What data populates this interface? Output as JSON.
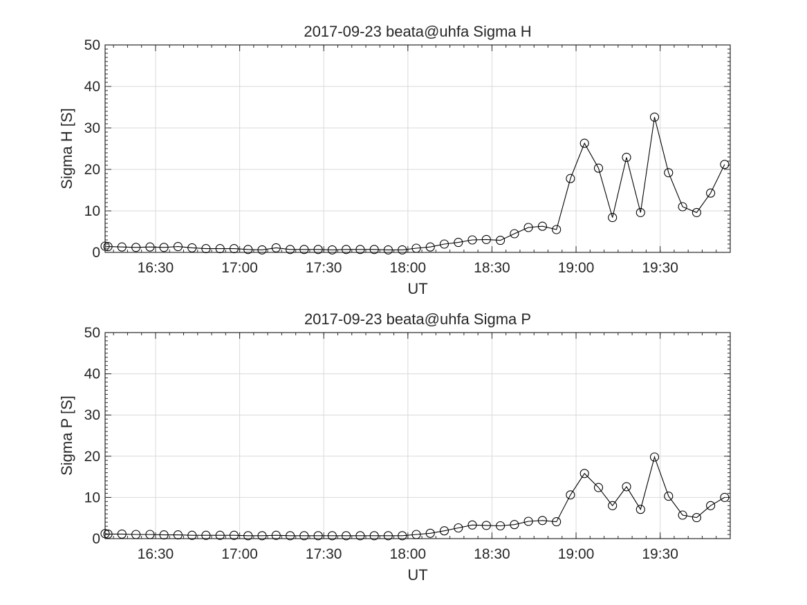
{
  "chart_data": [
    {
      "type": "line",
      "title": "2017-09-23  beata@uhfa Sigma H",
      "xlabel": "UT",
      "ylabel": "Sigma H [S]",
      "xlim": [
        "16:12",
        "19:55"
      ],
      "ylim": [
        0,
        50
      ],
      "yticks": [
        0,
        10,
        20,
        30,
        40,
        50
      ],
      "xticks": [
        "16:30",
        "17:00",
        "17:30",
        "18:00",
        "18:30",
        "19:00",
        "19:30"
      ],
      "grid": true,
      "marker": "open-circle",
      "color": "#000000",
      "x": [
        "16:12",
        "16:13",
        "16:18",
        "16:23",
        "16:28",
        "16:33",
        "16:38",
        "16:43",
        "16:48",
        "16:53",
        "16:58",
        "17:03",
        "17:08",
        "17:13",
        "17:18",
        "17:23",
        "17:28",
        "17:33",
        "17:38",
        "17:43",
        "17:48",
        "17:53",
        "17:58",
        "18:03",
        "18:08",
        "18:13",
        "18:18",
        "18:23",
        "18:28",
        "18:33",
        "18:38",
        "18:43",
        "18:48",
        "18:53",
        "18:58",
        "19:03",
        "19:08",
        "19:13",
        "19:18",
        "19:23",
        "19:28",
        "19:33",
        "19:38",
        "19:43",
        "19:48",
        "19:53"
      ],
      "values": [
        1.5,
        1.4,
        1.3,
        1.2,
        1.3,
        1.2,
        1.4,
        1.1,
        0.9,
        0.9,
        0.9,
        0.7,
        0.6,
        1.1,
        0.7,
        0.7,
        0.7,
        0.6,
        0.7,
        0.7,
        0.7,
        0.6,
        0.6,
        1.0,
        1.3,
        2.0,
        2.4,
        3.0,
        3.1,
        2.9,
        4.5,
        6.0,
        6.3,
        5.5,
        17.8,
        26.3,
        20.3,
        8.4,
        22.9,
        9.6,
        32.6,
        19.2,
        11.0,
        9.6,
        14.3,
        21.2
      ]
    },
    {
      "type": "line",
      "title": "2017-09-23  beata@uhfa Sigma P",
      "xlabel": "UT",
      "ylabel": "Sigma P [S]",
      "xlim": [
        "16:12",
        "19:55"
      ],
      "ylim": [
        0,
        50
      ],
      "yticks": [
        0,
        10,
        20,
        30,
        40,
        50
      ],
      "xticks": [
        "16:30",
        "17:00",
        "17:30",
        "18:00",
        "18:30",
        "19:00",
        "19:30"
      ],
      "grid": true,
      "marker": "open-circle",
      "color": "#000000",
      "x": [
        "16:12",
        "16:13",
        "16:18",
        "16:23",
        "16:28",
        "16:33",
        "16:38",
        "16:43",
        "16:48",
        "16:53",
        "16:58",
        "17:03",
        "17:08",
        "17:13",
        "17:18",
        "17:23",
        "17:28",
        "17:33",
        "17:38",
        "17:43",
        "17:48",
        "17:53",
        "17:58",
        "18:03",
        "18:08",
        "18:13",
        "18:18",
        "18:23",
        "18:28",
        "18:33",
        "18:38",
        "18:43",
        "18:48",
        "18:53",
        "18:58",
        "19:03",
        "19:08",
        "19:13",
        "19:18",
        "19:23",
        "19:28",
        "19:33",
        "19:38",
        "19:43",
        "19:48",
        "19:53"
      ],
      "values": [
        1.2,
        1.1,
        1.1,
        1.0,
        1.0,
        0.9,
        0.9,
        0.8,
        0.8,
        0.8,
        0.8,
        0.7,
        0.7,
        0.8,
        0.7,
        0.7,
        0.7,
        0.7,
        0.7,
        0.7,
        0.7,
        0.7,
        0.7,
        1.0,
        1.3,
        1.9,
        2.6,
        3.3,
        3.2,
        3.1,
        3.4,
        4.2,
        4.4,
        4.1,
        10.6,
        15.8,
        12.4,
        8.0,
        12.6,
        7.1,
        19.8,
        10.3,
        5.7,
        5.1,
        8.0,
        10.0
      ]
    }
  ]
}
